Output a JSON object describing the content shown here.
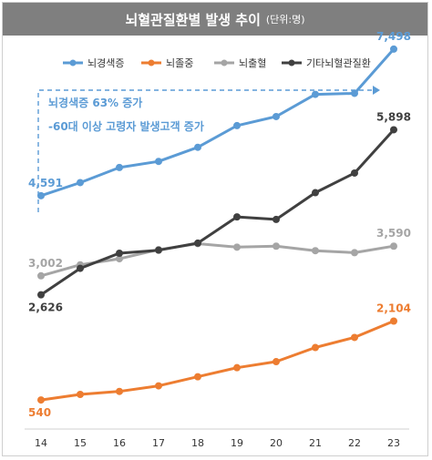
{
  "header": {
    "title": "뇌혈관질환별 발생 추이",
    "unit": "(단위:명)"
  },
  "annotation": {
    "line1": "뇌경색증 63% 증가",
    "line2": "-60대 이상 고령자 발생고객 증가"
  },
  "chart_data": {
    "type": "line",
    "x": [
      "14",
      "15",
      "16",
      "17",
      "18",
      "19",
      "20",
      "21",
      "22",
      "23"
    ],
    "ylim": [
      0,
      8200
    ],
    "grid": false,
    "legend": "top",
    "series": [
      {
        "name": "뇌경색증",
        "color": "#5b9bd5",
        "values": [
          4591,
          4850,
          5150,
          5270,
          5550,
          5980,
          6160,
          6600,
          6620,
          7498
        ],
        "labels": [
          {
            "i": 0,
            "text": "4,591",
            "pos": "above"
          },
          {
            "i": 9,
            "text": "7,498",
            "pos": "above"
          }
        ]
      },
      {
        "name": "뇌졸중",
        "color": "#ed7d31",
        "values": [
          540,
          650,
          710,
          820,
          1000,
          1180,
          1300,
          1580,
          1780,
          2104
        ],
        "labels": [
          {
            "i": 0,
            "text": "540",
            "pos": "below"
          },
          {
            "i": 9,
            "text": "2,104",
            "pos": "above"
          }
        ]
      },
      {
        "name": "뇌출혈",
        "color": "#a5a5a5",
        "values": [
          3002,
          3220,
          3340,
          3520,
          3640,
          3570,
          3590,
          3500,
          3460,
          3590
        ],
        "labels": [
          {
            "i": 0,
            "text": "3,002",
            "pos": "above"
          },
          {
            "i": 9,
            "text": "3,590",
            "pos": "above"
          }
        ]
      },
      {
        "name": "기타뇌혈관질환",
        "color": "#404040",
        "values": [
          2626,
          3150,
          3450,
          3510,
          3650,
          4170,
          4120,
          4650,
          5040,
          5898
        ],
        "labels": [
          {
            "i": 0,
            "text": "2,626",
            "pos": "below"
          },
          {
            "i": 9,
            "text": "5,898",
            "pos": "above"
          }
        ]
      }
    ]
  }
}
